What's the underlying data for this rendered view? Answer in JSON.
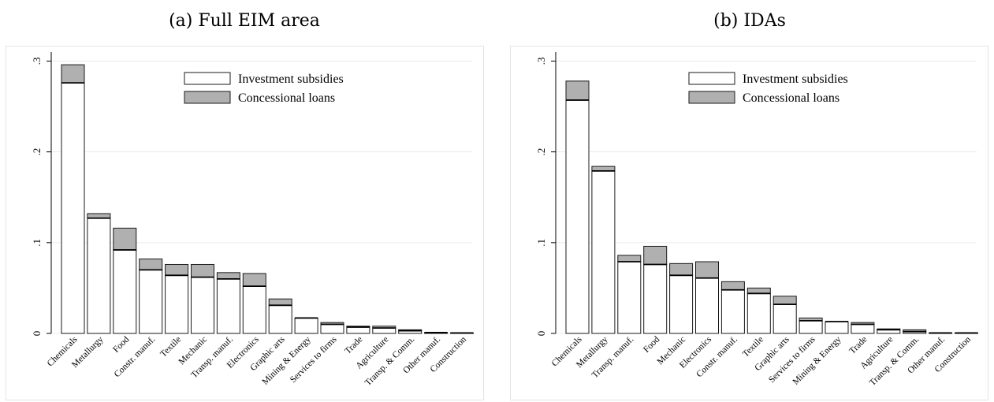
{
  "panels": [
    {
      "title": "(a) Full EIM area",
      "chart_data": {
        "type": "bar",
        "stacked": true,
        "categories": [
          "Chemicals",
          "Metallurgy",
          "Food",
          "Constr. manuf.",
          "Textile",
          "Mechanic",
          "Transp. manuf.",
          "Electronics",
          "Graphic arts",
          "Mining & Energy",
          "Services to firms",
          "Trade",
          "Agriculture",
          "Transp. & Comm.",
          "Other manuf.",
          "Construction"
        ],
        "series": [
          {
            "name": "Investment subsidies",
            "values": [
              0.276,
              0.127,
              0.092,
              0.07,
              0.064,
              0.062,
              0.06,
              0.052,
              0.031,
              0.017,
              0.01,
              0.007,
              0.006,
              0.003,
              0.001,
              0.0005
            ]
          },
          {
            "name": "Concessional loans",
            "values": [
              0.02,
              0.005,
              0.024,
              0.012,
              0.012,
              0.014,
              0.007,
              0.014,
              0.007,
              0.0,
              0.002,
              0.001,
              0.002,
              0.001,
              0.0,
              0.0
            ]
          }
        ],
        "yticks": [
          "0",
          ".1",
          ".2",
          ".3"
        ],
        "ylim": [
          0,
          0.31
        ],
        "grid": true,
        "legend_position": "top-right"
      }
    },
    {
      "title": "(b) IDAs",
      "chart_data": {
        "type": "bar",
        "stacked": true,
        "categories": [
          "Chemicals",
          "Metallurgy",
          "Transp. manuf.",
          "Food",
          "Mechanic",
          "Electronics",
          "Constr. manuf.",
          "Textile",
          "Graphic arts",
          "Services to firms",
          "Mining & Energy",
          "Trade",
          "Agriculture",
          "Transp. & Comm.",
          "Other manuf.",
          "Construction"
        ],
        "series": [
          {
            "name": "Investment subsidies",
            "values": [
              0.257,
              0.179,
              0.079,
              0.076,
              0.064,
              0.061,
              0.048,
              0.044,
              0.032,
              0.014,
              0.013,
              0.01,
              0.004,
              0.002,
              0.0005,
              0.0005
            ]
          },
          {
            "name": "Concessional loans",
            "values": [
              0.021,
              0.005,
              0.007,
              0.02,
              0.013,
              0.018,
              0.009,
              0.006,
              0.009,
              0.003,
              0.0,
              0.002,
              0.001,
              0.002,
              0.0,
              0.0
            ]
          }
        ],
        "yticks": [
          "0",
          ".1",
          ".2",
          ".3"
        ],
        "ylim": [
          0,
          0.31
        ],
        "grid": true,
        "legend_position": "top-right"
      }
    }
  ],
  "colors": {
    "subsidies_fill": "#ffffff",
    "loans_fill": "#b0b0b0",
    "stroke": "#1a1a1a",
    "grid": "#e6ecef"
  }
}
